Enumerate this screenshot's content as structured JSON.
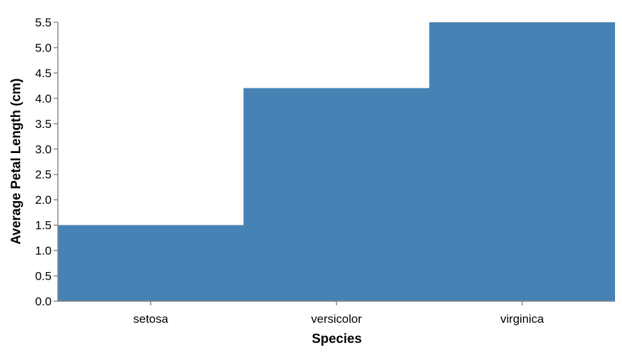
{
  "chart_data": {
    "type": "area",
    "interpolation": "step",
    "title": "",
    "xlabel": "Species",
    "ylabel": "Average Petal Length (cm)",
    "categories": [
      "setosa",
      "versicolor",
      "virginica"
    ],
    "values": [
      1.5,
      4.2,
      5.5
    ],
    "ylim": [
      0,
      5.5
    ],
    "yticks": [
      "0.0",
      "0.5",
      "1.0",
      "1.5",
      "2.0",
      "2.5",
      "3.0",
      "3.5",
      "4.0",
      "4.5",
      "5.0",
      "5.5"
    ],
    "grid": false,
    "color": "#4682b4"
  }
}
